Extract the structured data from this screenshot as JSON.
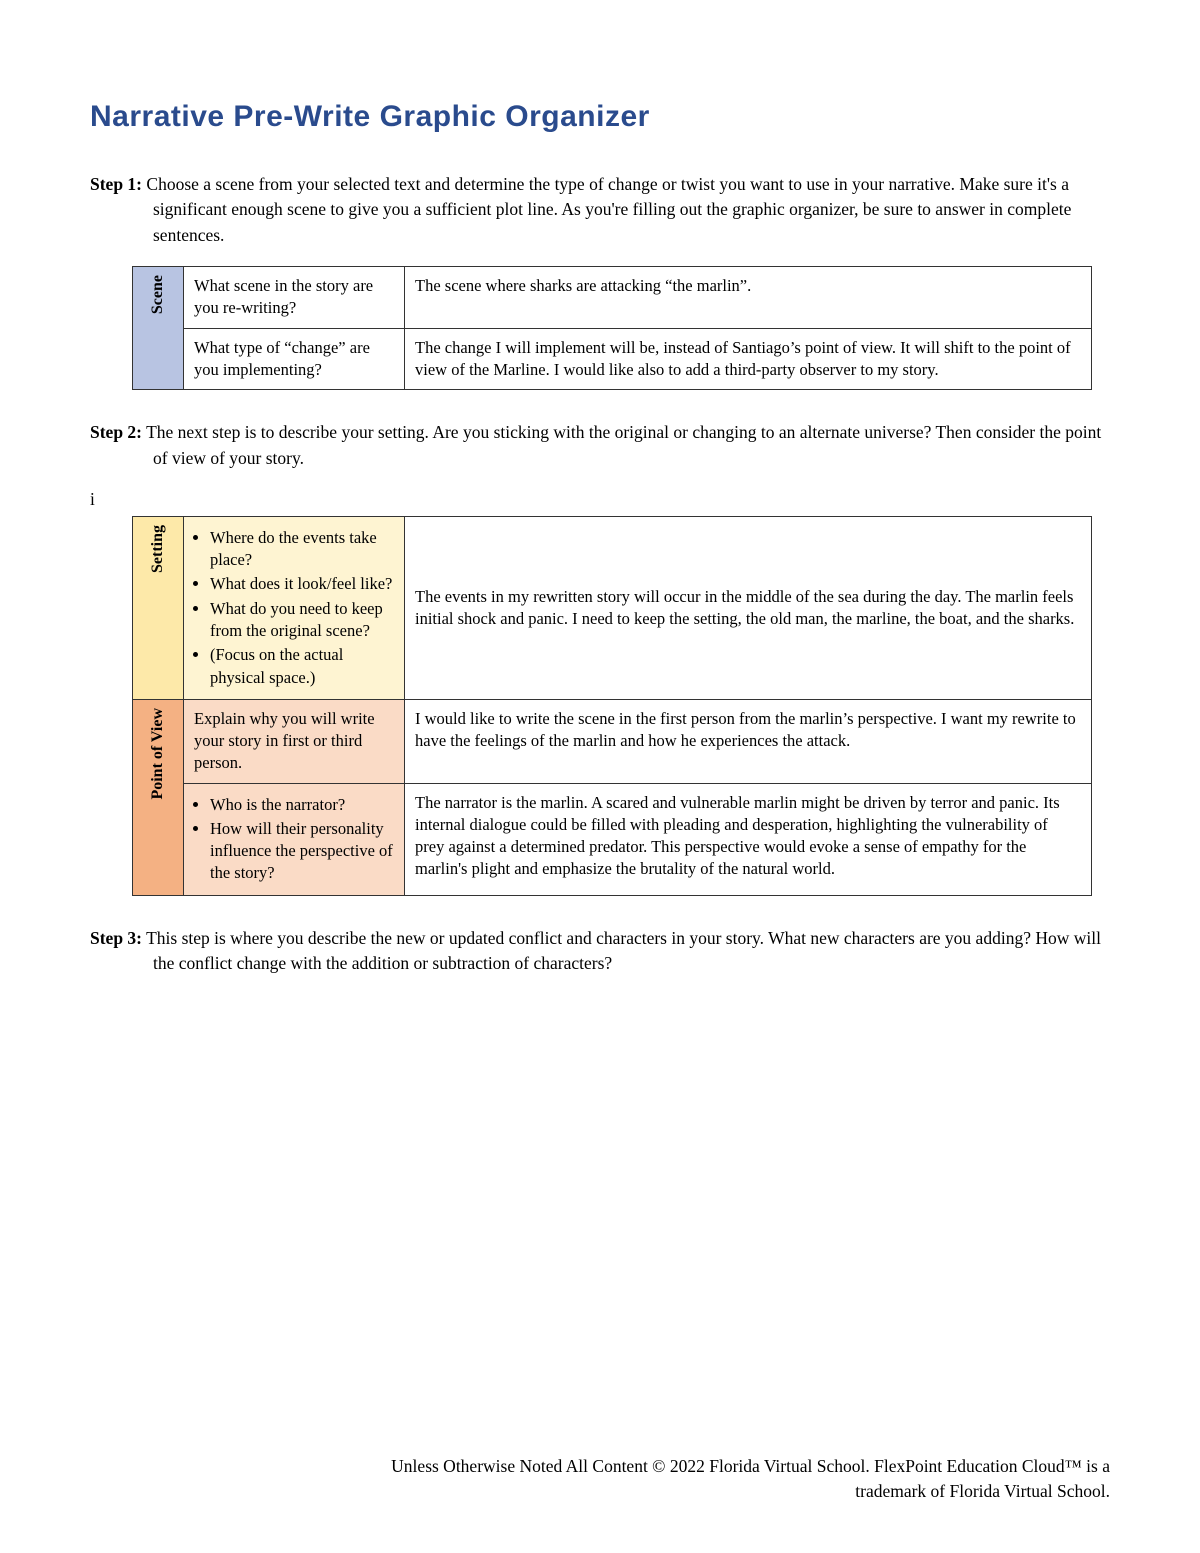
{
  "title": "Narrative Pre-Write Graphic Organizer",
  "step1": {
    "label": "Step 1:",
    "text": "Choose a scene from your selected text and determine the type of change or twist you want to use in your narrative. Make sure it's a significant enough scene to give you a sufficient plot line. As you're filling out the graphic organizer, be sure to answer in complete sentences."
  },
  "table1": {
    "label": "Scene",
    "row1_prompt": "What scene in the story are you re-writing?",
    "row1_answer": "The scene where sharks are attacking “the marlin”.",
    "row2_prompt": "What type of “change” are you implementing?",
    "row2_answer": "The change I will implement will be, instead of Santiago’s point of view. It will shift to the point of view of the Marline. I would like also to add a third-party observer to my story."
  },
  "step2": {
    "label": "Step 2:",
    "text": "The next step is to describe your setting. Are you sticking with the original or changing to an alternate universe? Then consider the point of view of your story."
  },
  "stray_i": "i",
  "table2": {
    "setting_label": "Setting",
    "setting_bullets": {
      "b1": "Where do the events take place?",
      "b2": "What does it look/feel like?",
      "b3": "What do you need to keep from the original scene?",
      "b4": "(Focus on the actual physical space.)"
    },
    "setting_answer": "The events in my rewritten story will occur in the middle of the sea during the day. The marlin feels initial shock and panic. I need to keep the setting, the old man, the marline, the boat, and the sharks.",
    "pov_label": "Point of View",
    "pov_row1_prompt": "Explain why you will write your story in first or third person.",
    "pov_row1_answer": "I would like to write the scene in the first person from the marlin’s perspective. I want my rewrite to have the feelings of the marlin and how he experiences the attack.",
    "pov_bullets": {
      "b1": "Who is the narrator?",
      "b2": "How will their personality influence the perspective of the story?"
    },
    "pov_row2_answer": "The narrator is the marlin. A scared and vulnerable marlin might be driven by terror and panic. Its internal dialogue could be filled with pleading and desperation, highlighting the vulnerability of prey against a determined predator. This perspective would evoke a sense of empathy for the marlin's plight and emphasize the brutality of the natural world."
  },
  "step3": {
    "label": "Step 3:",
    "text": "This step is where you describe the new or updated conflict and characters in your story. What new characters are you adding? How will the conflict change with the addition or subtraction of characters?"
  },
  "footer_line1": "Unless Otherwise Noted All Content © 2022 Florida Virtual School. FlexPoint Education Cloud™ is a",
  "footer_line2": "trademark of Florida Virtual School.",
  "colors": {
    "heading": "#2a4b8d",
    "blue_fill": "#b8c4e2",
    "yellow_fill": "#fde9a9",
    "yellow_light": "#fef4d2",
    "orange_fill": "#f4b183",
    "orange_light": "#fadbc6",
    "border": "#333333",
    "background": "#ffffff"
  }
}
